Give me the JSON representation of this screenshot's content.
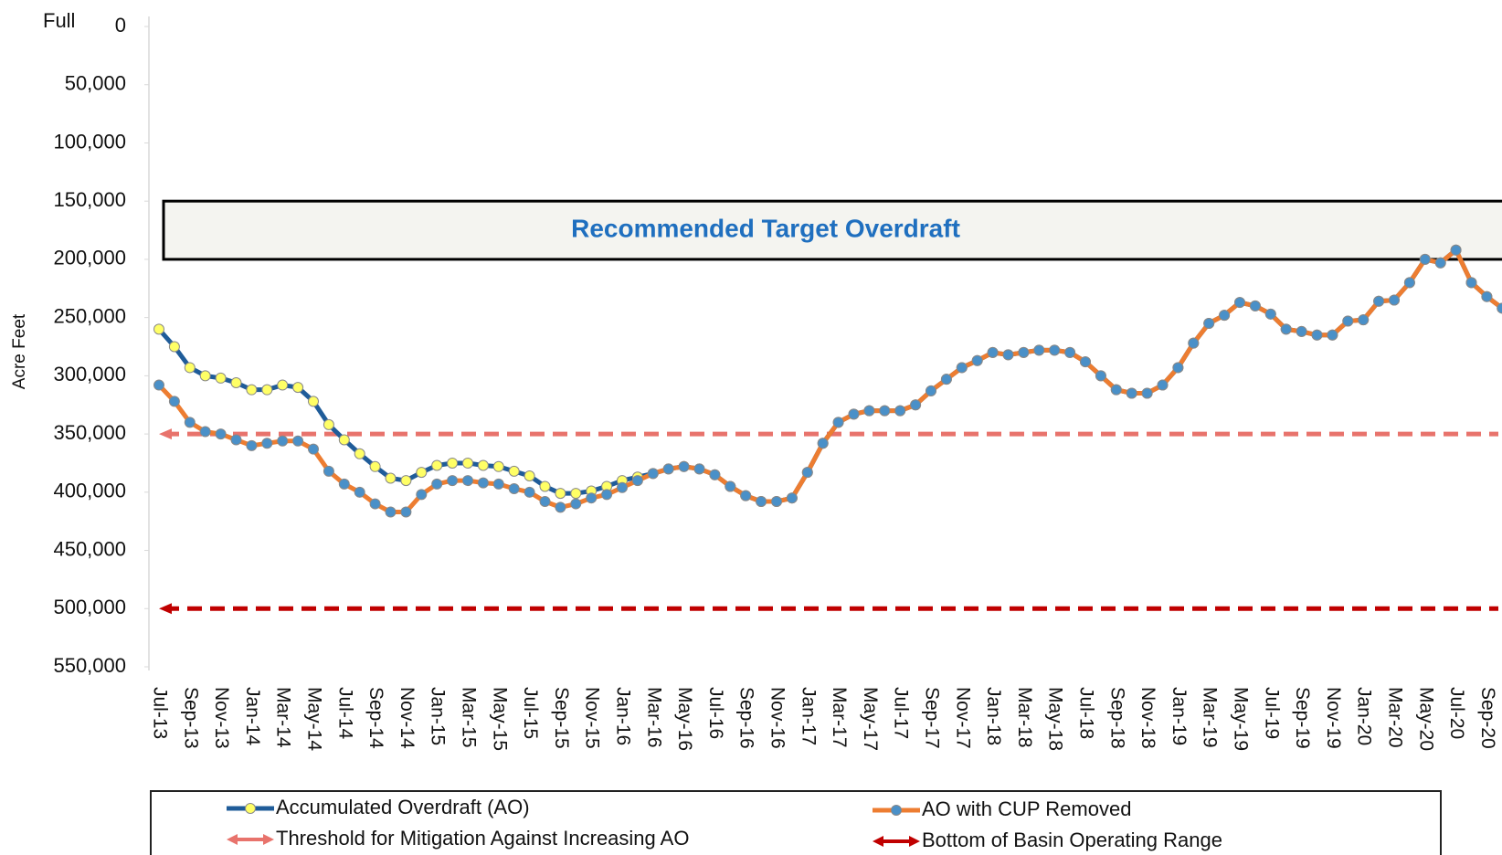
{
  "chart_data": {
    "type": "line",
    "y_label": "Acre Feet",
    "top_label": "Full",
    "y_inverted": true,
    "ylim": [
      0,
      550000
    ],
    "yticks": [
      0,
      {
        "value": 50000,
        "label": "50,000"
      },
      {
        "value": 100000,
        "label": "100,000"
      },
      {
        "value": 150000,
        "label": "150,000"
      },
      {
        "value": 200000,
        "label": "200,000"
      },
      {
        "value": 250000,
        "label": "250,000"
      },
      {
        "value": 300000,
        "label": "300,000"
      },
      {
        "value": 350000,
        "label": "350,000"
      },
      {
        "value": 400000,
        "label": "400,000"
      },
      {
        "value": 450000,
        "label": "450,000"
      },
      {
        "value": 500000,
        "label": "500,000"
      },
      {
        "value": 550000,
        "label": "550,000"
      }
    ],
    "categories": [
      "Jul-13",
      null,
      "Sep-13",
      null,
      "Nov-13",
      null,
      "Jan-14",
      null,
      "Mar-14",
      null,
      "May-14",
      null,
      "Jul-14",
      null,
      "Sep-14",
      null,
      "Nov-14",
      null,
      "Jan-15",
      null,
      "Mar-15",
      null,
      "May-15",
      null,
      "Jul-15",
      null,
      "Sep-15",
      null,
      "Nov-15",
      null,
      "Jan-16",
      null,
      "Mar-16",
      null,
      "May-16",
      null,
      "Jul-16",
      null,
      "Sep-16",
      null,
      "Nov-16",
      null,
      "Jan-17",
      null,
      "Mar-17",
      null,
      "May-17",
      null,
      "Jul-17",
      null,
      "Sep-17",
      null,
      "Nov-17",
      null,
      "Jan-18",
      null,
      "Mar-18",
      null,
      "May-18",
      null,
      "Jul-18",
      null,
      "Sep-18",
      null,
      "Nov-18",
      null,
      "Jan-19",
      null,
      "Mar-19",
      null,
      "May-19",
      null,
      "Jul-19",
      null,
      "Sep-19",
      null,
      "Nov-19",
      null,
      "Jan-20",
      null,
      "Mar-20",
      null,
      "May-20",
      null,
      "Jul-20",
      null,
      "Sep-20",
      null
    ],
    "series": [
      {
        "name": "Accumulated Overdraft (AO)",
        "color": "#1f5c99",
        "marker_color": "#ffff66",
        "values": [
          260000,
          275000,
          293000,
          300000,
          302000,
          306000,
          312000,
          312000,
          308000,
          310000,
          322000,
          342000,
          355000,
          367000,
          378000,
          388000,
          390000,
          383000,
          377000,
          375000,
          375000,
          377000,
          378000,
          382000,
          386000,
          395000,
          401000,
          401000,
          399000,
          395000,
          390000,
          387000,
          384000,
          380000,
          378000,
          380000,
          385000,
          395000,
          403000,
          408000,
          408000,
          405000,
          383000,
          358000,
          340000,
          333000,
          330000,
          330000,
          330000,
          325000,
          313000,
          303000,
          293000,
          287000,
          280000,
          282000,
          280000,
          278000,
          278000,
          280000,
          288000,
          300000,
          312000,
          315000,
          315000,
          308000,
          293000,
          272000,
          255000,
          248000,
          237000,
          240000,
          247000,
          260000,
          262000,
          265000,
          265000,
          253000,
          252000,
          236000,
          235000,
          220000,
          200000,
          203000,
          192000,
          220000,
          232000,
          242000
        ]
      },
      {
        "name": "AO with CUP Removed",
        "color": "#ed7d31",
        "marker_color": "#4a90c8",
        "values": [
          308000,
          322000,
          340000,
          348000,
          350000,
          355000,
          360000,
          358000,
          356000,
          356000,
          363000,
          382000,
          393000,
          400000,
          410000,
          417000,
          417000,
          402000,
          393000,
          390000,
          390000,
          392000,
          393000,
          397000,
          400000,
          408000,
          413000,
          410000,
          405000,
          402000,
          396000,
          390000,
          384000,
          380000,
          378000,
          380000,
          385000,
          395000,
          403000,
          408000,
          408000,
          405000,
          383000,
          358000,
          340000,
          333000,
          330000,
          330000,
          330000,
          325000,
          313000,
          303000,
          293000,
          287000,
          280000,
          282000,
          280000,
          278000,
          278000,
          280000,
          288000,
          300000,
          312000,
          315000,
          315000,
          308000,
          293000,
          272000,
          255000,
          248000,
          237000,
          240000,
          247000,
          260000,
          262000,
          265000,
          265000,
          253000,
          252000,
          236000,
          235000,
          220000,
          200000,
          203000,
          192000,
          220000,
          232000,
          242000
        ]
      }
    ],
    "reference_lines": [
      {
        "name": "Threshold for Mitigation Against Increasing AO",
        "value": 350000,
        "color": "#e8736c"
      },
      {
        "name": "Bottom of Basin Operating Range",
        "value": 500000,
        "color": "#c00000"
      }
    ],
    "target_band": {
      "label": "Recommended Target Overdraft",
      "range": [
        150000,
        200000
      ],
      "label_color": "#1f6fbf"
    }
  }
}
